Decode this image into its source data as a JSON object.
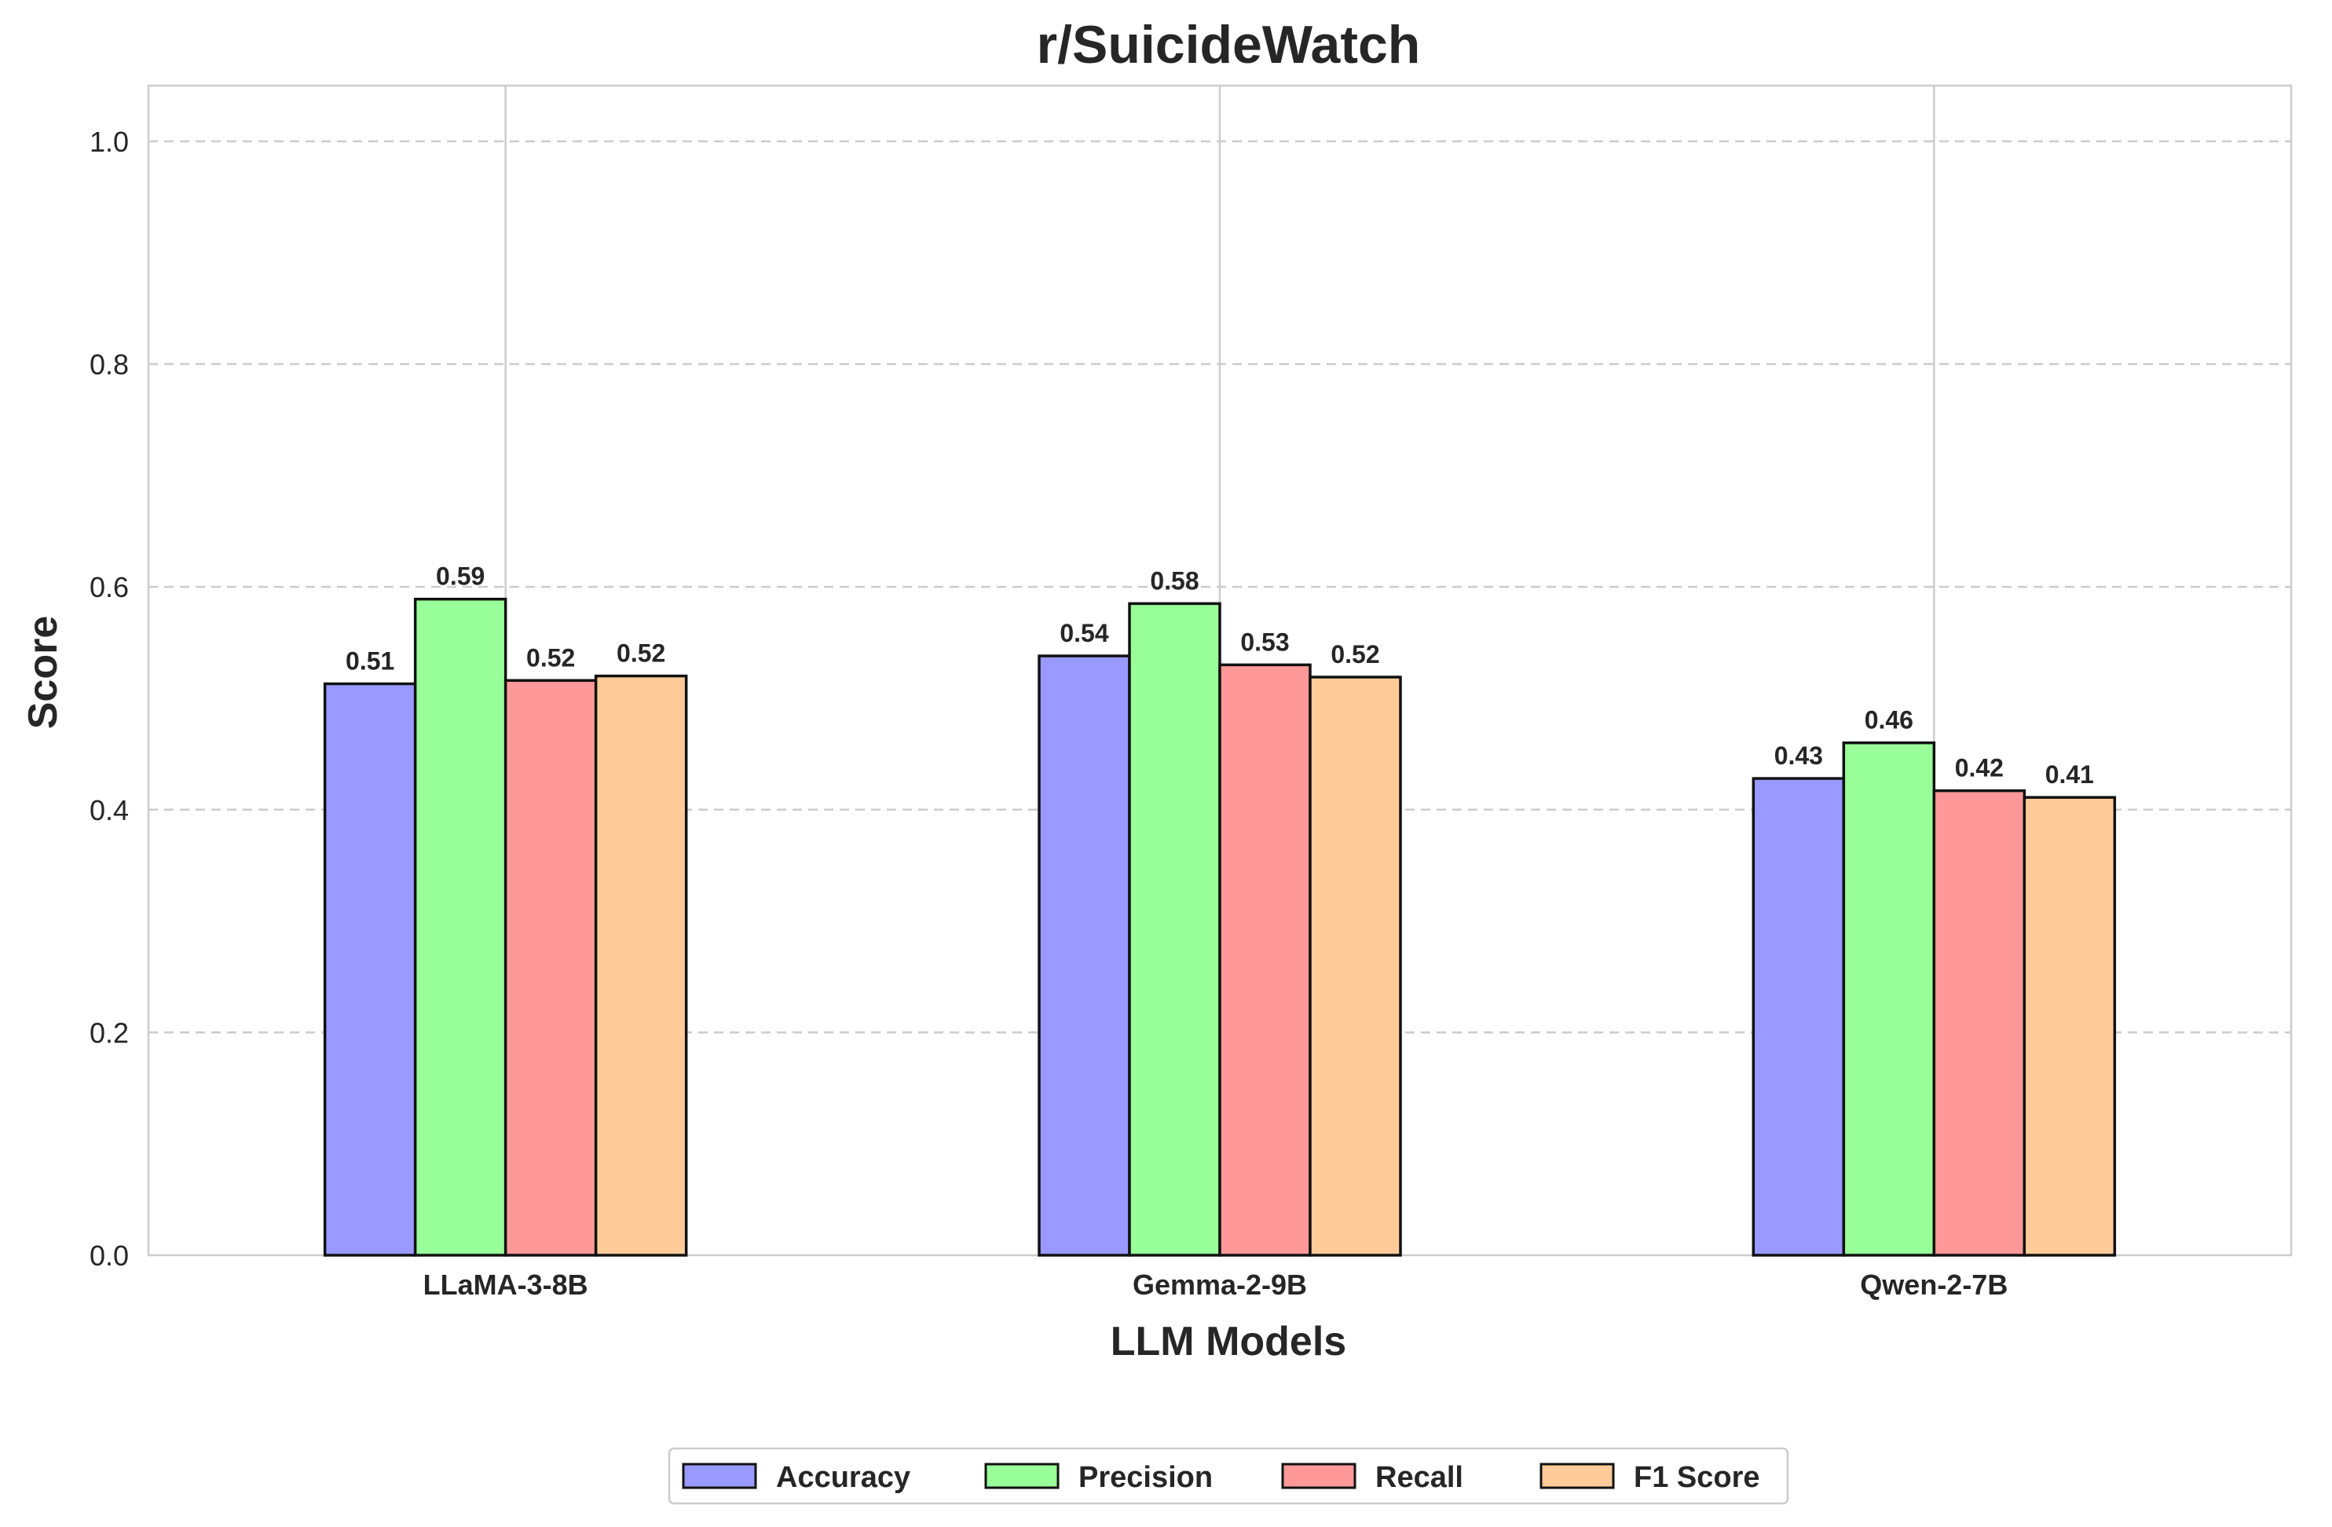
{
  "chart_data": {
    "type": "bar",
    "title": "r/SuicideWatch",
    "xlabel": "LLM Models",
    "ylabel": "Score",
    "ylim": [
      0,
      1.05
    ],
    "yticks": [
      "0.0",
      "0.2",
      "0.4",
      "0.6",
      "0.8",
      "1.0"
    ],
    "categories": [
      "LLaMA-3-8B",
      "Gemma-2-9B",
      "Qwen-2-7B"
    ],
    "series": [
      {
        "name": "Accuracy",
        "color": "#9999ff",
        "values": [
          0.513,
          0.538,
          0.428
        ],
        "labels": [
          "0.51",
          "0.54",
          "0.43"
        ]
      },
      {
        "name": "Precision",
        "color": "#99ff99",
        "values": [
          0.589,
          0.585,
          0.46
        ],
        "labels": [
          "0.59",
          "0.58",
          "0.46"
        ]
      },
      {
        "name": "Recall",
        "color": "#ff9999",
        "values": [
          0.516,
          0.53,
          0.417
        ],
        "labels": [
          "0.52",
          "0.53",
          "0.42"
        ]
      },
      {
        "name": "F1 Score",
        "color": "#ffcc99",
        "values": [
          0.52,
          0.519,
          0.411
        ],
        "labels": [
          "0.52",
          "0.52",
          "0.41"
        ]
      }
    ],
    "grid": {
      "y": "dashed",
      "x": "solid at category centers"
    },
    "legend": {
      "position": "bottom-center",
      "columns": 4
    }
  }
}
